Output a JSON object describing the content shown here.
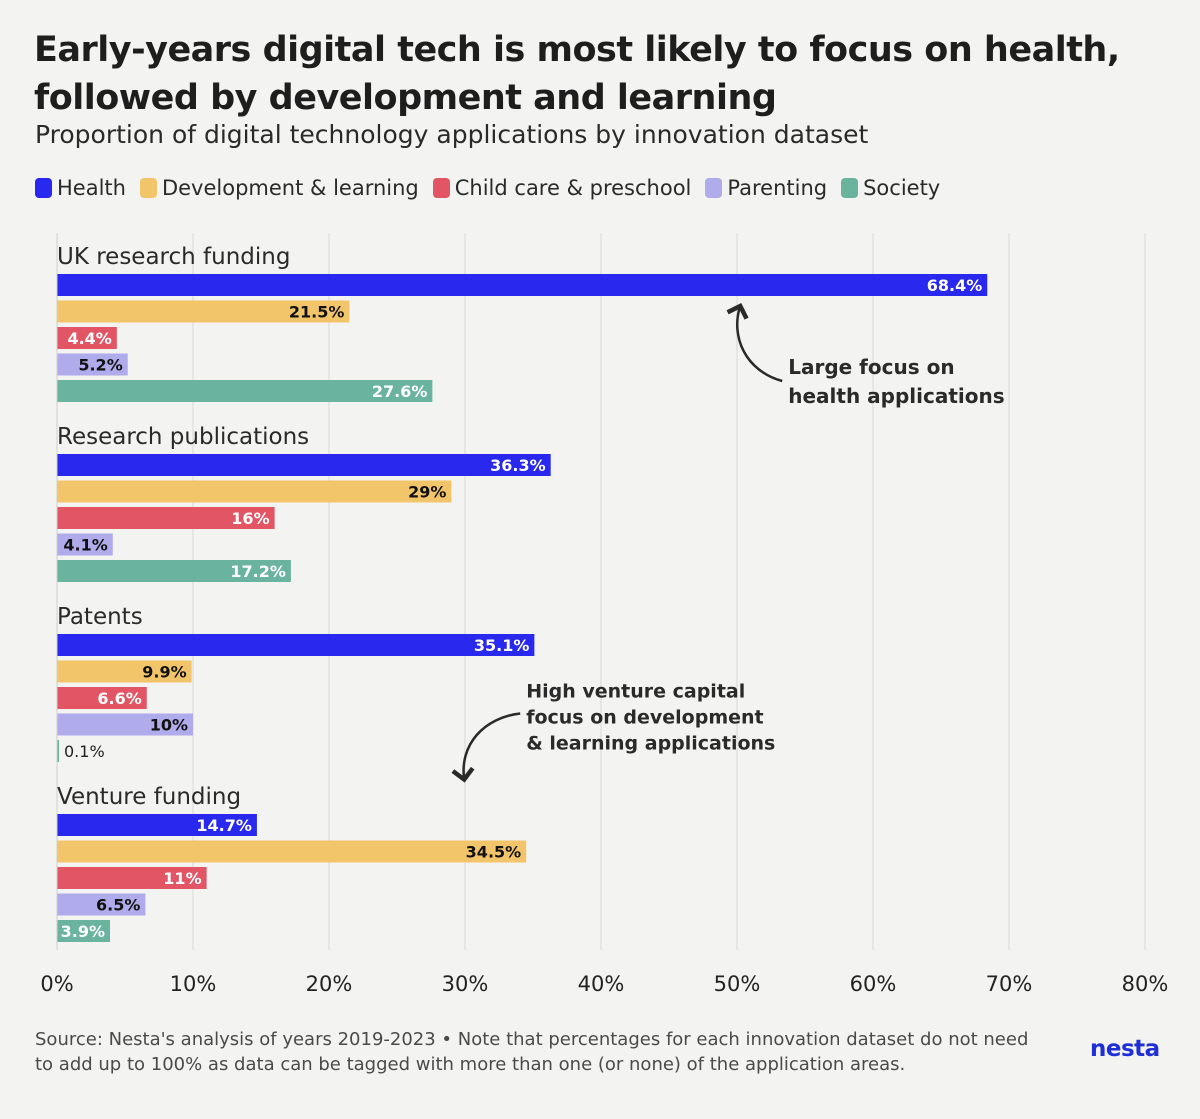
{
  "title_line1": "Early-years digital tech is most likely to focus on health,",
  "title_line2": "followed by development and learning",
  "subtitle": "Proportion of digital technology applications by innovation dataset",
  "footer": {
    "line1": "Source: Nesta's analysis of years 2019-2023 • Note that percentages for each innovation dataset do not need",
    "line2": "to add up to 100% as data can be tagged with more than one (or none) of the application areas."
  },
  "logo": "nesta",
  "chart_data": {
    "type": "bar",
    "orientation": "horizontal",
    "title": "Early-years digital tech is most likely to focus on health, followed by development and learning",
    "subtitle": "Proportion of digital technology applications by innovation dataset",
    "xlim": [
      0,
      80
    ],
    "xticks": [
      "0%",
      "10%",
      "20%",
      "30%",
      "40%",
      "50%",
      "60%",
      "70%",
      "80%"
    ],
    "grid": true,
    "series": [
      {
        "name": "Health",
        "color": "#2828ee",
        "label_color": "#ffffff"
      },
      {
        "name": "Development & learning",
        "color": "#f2c56a",
        "label_color": "#111111"
      },
      {
        "name": "Child care & preschool",
        "color": "#e25564",
        "label_color": "#ffffff"
      },
      {
        "name": "Parenting",
        "color": "#b0abea",
        "label_color": "#111111"
      },
      {
        "name": "Society",
        "color": "#6ab39f",
        "label_color": "#ffffff"
      }
    ],
    "groups": [
      {
        "name": "UK research funding",
        "values": [
          68.4,
          21.5,
          4.4,
          5.2,
          27.6
        ],
        "labels": [
          "68.4%",
          "21.5%",
          "4.4%",
          "5.2%",
          "27.6%"
        ]
      },
      {
        "name": "Research publications",
        "values": [
          36.3,
          29,
          16,
          4.1,
          17.2
        ],
        "labels": [
          "36.3%",
          "29%",
          "16%",
          "4.1%",
          "17.2%"
        ]
      },
      {
        "name": "Patents",
        "values": [
          35.1,
          9.9,
          6.6,
          10,
          0.1
        ],
        "labels": [
          "35.1%",
          "9.9%",
          "6.6%",
          "10%",
          "0.1%"
        ]
      },
      {
        "name": "Venture funding",
        "values": [
          14.7,
          34.5,
          11,
          6.5,
          3.9
        ],
        "labels": [
          "14.7%",
          "34.5%",
          "11%",
          "6.5%",
          "3.9%"
        ]
      }
    ],
    "annotations": [
      {
        "lines": [
          "Large focus on",
          "health applications"
        ],
        "group": 0,
        "series": 0
      },
      {
        "lines": [
          "High venture capital",
          "focus on development",
          "& learning applications"
        ],
        "group": 3,
        "series": 1
      }
    ]
  }
}
